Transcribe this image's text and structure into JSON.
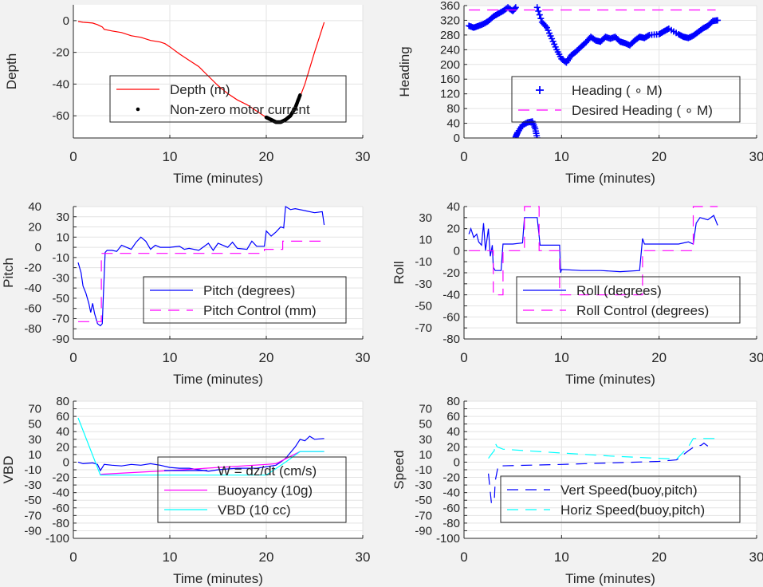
{
  "chart_data": [
    {
      "type": "line",
      "xlabel": "Time (minutes)",
      "ylabel": "Depth",
      "xlim": [
        0,
        30
      ],
      "ylim": [
        -74,
        10
      ],
      "xticks": [
        0,
        10,
        20,
        30
      ],
      "yticks": [
        -60,
        -40,
        -20,
        0
      ],
      "grid": true,
      "legend": {
        "placement": "lower-right"
      },
      "series": [
        {
          "name": "Depth (m)",
          "color": "#ff0000",
          "style": "solid",
          "x": [
            0.5,
            1,
            2,
            2.5,
            3,
            3.2,
            4,
            5,
            6,
            7,
            8,
            9,
            9.5,
            10,
            11,
            12,
            13,
            14,
            15,
            16,
            17,
            18,
            19,
            20,
            20.5,
            21,
            21.5,
            22,
            22.5,
            23,
            23.5,
            24,
            25,
            26
          ],
          "y": [
            -0.5,
            -1,
            -1.5,
            -2.5,
            -4,
            -5.5,
            -6.5,
            -7.5,
            -9.5,
            -10.5,
            -12.5,
            -13.5,
            -14.5,
            -16.5,
            -21,
            -25,
            -29,
            -35,
            -41,
            -46,
            -50,
            -53,
            -57,
            -61,
            -62.5,
            -64,
            -64,
            -62.5,
            -60,
            -55,
            -48,
            -40,
            -20,
            -1
          ]
        },
        {
          "name": "Non-zero motor current",
          "color": "#000000",
          "style": "dot",
          "x": [
            20,
            20.5,
            21,
            21.5,
            22,
            22.5,
            23,
            23.5
          ],
          "y": [
            -61,
            -62.5,
            -64,
            -64,
            -62.5,
            -60,
            -55,
            -47
          ]
        }
      ]
    },
    {
      "type": "scatter",
      "xlabel": "Time (minutes)",
      "ylabel": "Heading",
      "xlim": [
        0,
        30
      ],
      "ylim": [
        0,
        360
      ],
      "xticks": [
        0,
        10,
        20,
        30
      ],
      "yticks": [
        0,
        40,
        80,
        120,
        160,
        200,
        240,
        280,
        320,
        360
      ],
      "grid": true,
      "legend": {
        "placement": "lower-right"
      },
      "series": [
        {
          "name": "Heading (  ∘ M)",
          "color": "#0000ff",
          "style": "plus",
          "x": [
            0.5,
            1,
            1.5,
            2,
            2.5,
            3,
            3.5,
            4,
            4.5,
            5,
            5.3,
            5.3,
            5.5,
            6,
            6.5,
            7,
            7.3,
            7.5,
            7.5,
            8,
            8.5,
            9,
            9.5,
            10,
            10.5,
            11,
            11.5,
            12,
            12.5,
            13,
            13.5,
            14,
            14.5,
            15,
            15.5,
            16,
            16.5,
            17,
            17.5,
            18,
            18.5,
            19,
            20,
            20.5,
            21,
            22,
            22.5,
            23,
            23.5,
            24,
            24.5,
            25,
            25.5,
            26
          ],
          "y": [
            305,
            300,
            305,
            310,
            318,
            330,
            338,
            345,
            355,
            345,
            355,
            3,
            15,
            35,
            42,
            45,
            25,
            0,
            355,
            315,
            300,
            270,
            240,
            215,
            205,
            225,
            235,
            248,
            260,
            275,
            265,
            262,
            275,
            270,
            275,
            262,
            258,
            252,
            265,
            275,
            272,
            280,
            282,
            290,
            297,
            282,
            275,
            272,
            278,
            288,
            298,
            305,
            318,
            320
          ]
        },
        {
          "name": "Desired Heading (    ∘ M)",
          "color": "#ff00ff",
          "style": "dashed",
          "x": [
            0.5,
            25.8
          ],
          "y": [
            348,
            348
          ]
        }
      ]
    },
    {
      "type": "line",
      "xlabel": "Time (minutes)",
      "ylabel": "Pitch",
      "xlim": [
        0,
        30
      ],
      "ylim": [
        -90,
        40
      ],
      "xticks": [
        0,
        10,
        20,
        30
      ],
      "yticks": [
        -90,
        -80,
        -70,
        -60,
        -50,
        -40,
        -30,
        -20,
        -10,
        0,
        10,
        20,
        30,
        40
      ],
      "grid": true,
      "legend": {
        "placement": "lower-right"
      },
      "series": [
        {
          "name": "Pitch (degrees)",
          "color": "#0000ff",
          "style": "solid",
          "x": [
            0.5,
            0.8,
            1,
            1.3,
            1.6,
            1.8,
            2,
            2.2,
            2.5,
            2.8,
            3,
            3.1,
            3.3,
            3.5,
            4,
            4.5,
            5,
            5.5,
            6,
            6.5,
            7,
            7.5,
            8,
            8.5,
            9,
            10,
            11,
            11.5,
            12,
            13,
            14,
            14.5,
            15,
            16,
            16.5,
            17,
            18,
            18.5,
            19,
            19.8,
            20,
            20.5,
            21,
            21.5,
            21.8,
            22,
            22.5,
            23,
            24,
            25,
            25.8,
            26
          ],
          "y": [
            -15,
            -25,
            -38,
            -45,
            -55,
            -64,
            -55,
            -65,
            -75,
            -77,
            -75,
            -50,
            -5,
            -3,
            -3,
            -4,
            2,
            0,
            -2,
            5,
            10,
            6,
            -2,
            2,
            0,
            0,
            1,
            -2,
            -1,
            -3,
            4,
            -3,
            4,
            0,
            5,
            -1,
            -2,
            6,
            1,
            1,
            16,
            11,
            15,
            20,
            19,
            40,
            37,
            38,
            36,
            34,
            35,
            22
          ]
        },
        {
          "name": "Pitch Control (mm)",
          "color": "#ff00ff",
          "style": "dashed",
          "x": [
            0.5,
            2.9,
            2.9,
            19.8,
            19.8,
            21.7,
            21.7,
            25.8
          ],
          "y": [
            -73,
            -73,
            -6,
            -6,
            -2,
            -2,
            6,
            6
          ]
        }
      ]
    },
    {
      "type": "line",
      "xlabel": "Time (minutes)",
      "ylabel": "Roll",
      "xlim": [
        0,
        30
      ],
      "ylim": [
        -80,
        40
      ],
      "xticks": [
        0,
        10,
        20,
        30
      ],
      "yticks": [
        -80,
        -70,
        -60,
        -50,
        -40,
        -30,
        -20,
        -10,
        0,
        10,
        20,
        30,
        40
      ],
      "grid": true,
      "legend": {
        "placement": "lower-right"
      },
      "series": [
        {
          "name": "Roll (degrees)",
          "color": "#0000ff",
          "style": "solid",
          "x": [
            0.5,
            0.7,
            1,
            1.3,
            1.5,
            1.8,
            2,
            2.2,
            2.5,
            2.7,
            2.9,
            3,
            3.2,
            3.8,
            4,
            5,
            6,
            6.2,
            7.5,
            7.8,
            9,
            9.8,
            9.9,
            10,
            12,
            14,
            16,
            18,
            18.3,
            18.5,
            20,
            22,
            23,
            23.5,
            23.8,
            24.2,
            25,
            25.6,
            26
          ],
          "y": [
            15,
            20,
            12,
            15,
            8,
            5,
            25,
            0,
            20,
            -5,
            5,
            -15,
            -18,
            -18,
            6,
            6,
            7,
            30,
            30,
            5,
            5,
            5,
            -20,
            -17,
            -18,
            -18,
            -19,
            -18,
            11,
            6,
            6,
            6,
            8,
            6,
            25,
            30,
            28,
            32,
            23
          ]
        },
        {
          "name": "Roll Control (degrees)",
          "color": "#ff00ff",
          "style": "dashed",
          "x": [
            0.5,
            3,
            3,
            4,
            4,
            6.2,
            6.2,
            7.7,
            7.7,
            9.8,
            9.8,
            18.3,
            18.3,
            23.5,
            23.5,
            26
          ],
          "y": [
            0,
            0,
            -40,
            -40,
            0,
            0,
            40,
            40,
            0,
            0,
            -40,
            -40,
            0,
            0,
            40,
            40
          ]
        }
      ]
    },
    {
      "type": "line",
      "xlabel": "Time (minutes)",
      "ylabel": "VBD",
      "xlim": [
        0,
        30
      ],
      "ylim": [
        -100,
        80
      ],
      "xticks": [
        0,
        10,
        20,
        30
      ],
      "yticks": [
        -100,
        -90,
        -80,
        -70,
        -60,
        -50,
        -40,
        -30,
        -20,
        -10,
        0,
        10,
        20,
        30,
        40,
        50,
        60,
        70,
        80
      ],
      "grid": true,
      "legend": {
        "placement": "lower-right"
      },
      "series": [
        {
          "name": "W = dz/dt (cm/s)",
          "color": "#0000ff",
          "style": "solid",
          "x": [
            0.5,
            1,
            2,
            2.5,
            2.8,
            3.2,
            4,
            5,
            6,
            7,
            8,
            9,
            10,
            11,
            12,
            13,
            14,
            15,
            16,
            17,
            19,
            21,
            21.5,
            22,
            23,
            23.5,
            24,
            24.5,
            25,
            26
          ],
          "y": [
            0,
            -2,
            -1,
            -3,
            -11,
            -3,
            -4,
            -5,
            -3,
            -4,
            -2,
            -4,
            -7,
            -8,
            -8,
            -10,
            -12,
            -10,
            -9,
            -8,
            -8,
            -4,
            0,
            5,
            20,
            30,
            28,
            34,
            30,
            31
          ]
        },
        {
          "name": "Buoyancy (10g)",
          "color": "#ff00ff",
          "style": "solid",
          "x": [
            2.8,
            10,
            20,
            21,
            23.5,
            26
          ],
          "y": [
            -16,
            -11,
            -3,
            -2,
            14,
            14
          ]
        },
        {
          "name": "VBD (10 cc)",
          "color": "#00ffff",
          "style": "solid",
          "x": [
            0.5,
            2.8,
            20,
            22,
            23.5,
            26
          ],
          "y": [
            58,
            -17,
            -17,
            0,
            14,
            14
          ]
        }
      ]
    },
    {
      "type": "line",
      "xlabel": "Time (minutes)",
      "ylabel": "Speed",
      "xlim": [
        0,
        30
      ],
      "ylim": [
        -100,
        80
      ],
      "xticks": [
        0,
        10,
        20,
        30
      ],
      "yticks": [
        -100,
        -90,
        -80,
        -70,
        -60,
        -50,
        -40,
        -30,
        -20,
        -10,
        0,
        10,
        20,
        30,
        40,
        50,
        60,
        70,
        80
      ],
      "grid": true,
      "legend": {
        "placement": "lower-right"
      },
      "series": [
        {
          "name": "Vert Speed(buoy,pitch)",
          "color": "#0000ff",
          "style": "dashed",
          "x": [
            2.5,
            2.8,
            3.1,
            3.2,
            3.5,
            10,
            15,
            20,
            21.8,
            23,
            23.7,
            24.3,
            24.6,
            25
          ],
          "y": [
            -15,
            -53,
            -53,
            -25,
            -5,
            -3,
            -1,
            1,
            3,
            15,
            21,
            22,
            25,
            21
          ]
        },
        {
          "name": "Horiz Speed(buoy,pitch)",
          "color": "#00ffff",
          "style": "dashed",
          "x": [
            2.5,
            2.9,
            3.1,
            3.2,
            3.4,
            4,
            10,
            15,
            20,
            21.8,
            23,
            23.5,
            26
          ],
          "y": [
            5,
            12,
            15,
            25,
            20,
            17,
            12,
            8,
            5,
            4,
            20,
            31,
            31
          ]
        }
      ]
    }
  ]
}
